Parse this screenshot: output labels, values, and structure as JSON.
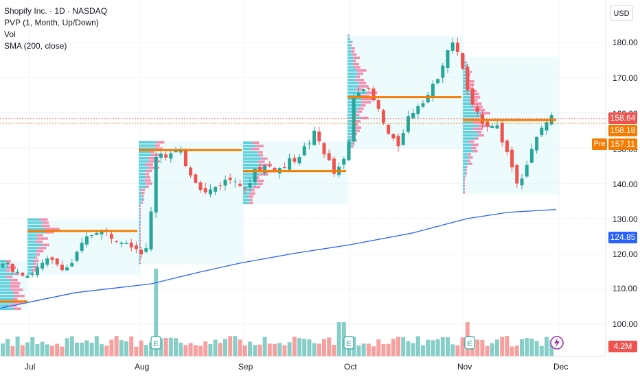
{
  "legend": {
    "symbol": "Shopify Inc. · 1D · NASDAQ",
    "pvp": "PVP (1, Month, Up/Down)",
    "vol": "Vol",
    "sma": "SMA (200, close)"
  },
  "axis": {
    "currency": "USD",
    "y_ticks": [
      "180.00",
      "170.00",
      "160.00",
      "150.00",
      "140.00",
      "130.00",
      "120.00",
      "110.00",
      "100.00"
    ],
    "x_ticks": [
      "Jul",
      "Aug",
      "Sep",
      "Oct",
      "Nov",
      "Dec"
    ]
  },
  "price_tags": {
    "last": "158.64",
    "prev": "158.18",
    "pre_label": "Pre",
    "pre": "157.11",
    "sma": "124.85",
    "volume": "4.2M"
  },
  "colors": {
    "up": "#26a69a",
    "down": "#ef5350",
    "sma": "#2962ff",
    "poc": "#f57c00",
    "profile_up": "#5fd0dc",
    "profile_down": "#f48fb1",
    "profile_bg": "#e0f7fa"
  },
  "chart_data": {
    "type": "candlestick",
    "ylim": [
      94,
      186
    ],
    "y_ticks": [
      100,
      110,
      120,
      130,
      140,
      150,
      160,
      170,
      180
    ],
    "series": [
      {
        "name": "SMA (200, close)",
        "points": [
          [
            0,
            104.6
          ],
          [
            110,
            109.0
          ],
          [
            220,
            111.5
          ],
          [
            290,
            114.8
          ],
          [
            350,
            117.4
          ],
          [
            430,
            120.2
          ],
          [
            510,
            122.6
          ],
          [
            600,
            125.9
          ],
          [
            680,
            130.0
          ],
          [
            740,
            131.8
          ],
          [
            810,
            132.6
          ]
        ]
      }
    ],
    "profiles": [
      {
        "period": "Jun",
        "poc": 106.5
      },
      {
        "period": "Jul",
        "poc": 126.5
      },
      {
        "period": "Aug",
        "poc": 149.5
      },
      {
        "period": "Sep",
        "poc": 143.5
      },
      {
        "period": "Oct",
        "poc": 164.5
      },
      {
        "period": "Nov",
        "poc": 158.0
      }
    ],
    "events": [
      "E",
      "E",
      "E"
    ]
  }
}
